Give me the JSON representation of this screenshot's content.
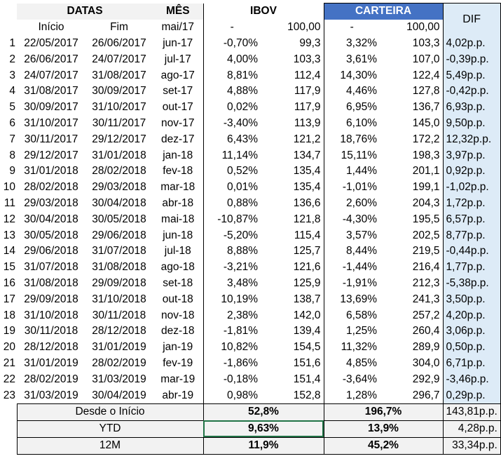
{
  "headers": {
    "datas": "DATAS",
    "mes": "MÊS",
    "ibov": "IBOV",
    "carteira": "CARTEIRA",
    "dif": "DIF",
    "inicio": "Início",
    "fim": "Fim",
    "mes_base": "mai/17",
    "ibov_dash": "-",
    "ibov_base": "100,00",
    "cart_dash": "-",
    "cart_base": "100,00"
  },
  "rows": [
    {
      "n": "1",
      "inicio": "22/05/2017",
      "fim": "26/06/2017",
      "mes": "jun-17",
      "ibov_pct": "-0,70%",
      "ibov_idx": "99,3",
      "cart_pct": "3,32%",
      "cart_idx": "103,3",
      "dif": "4,02p.p."
    },
    {
      "n": "2",
      "inicio": "26/06/2017",
      "fim": "24/07/2017",
      "mes": "jul-17",
      "ibov_pct": "4,00%",
      "ibov_idx": "103,3",
      "cart_pct": "3,61%",
      "cart_idx": "107,0",
      "dif": "-0,39p.p."
    },
    {
      "n": "3",
      "inicio": "24/07/2017",
      "fim": "31/08/2017",
      "mes": "ago-17",
      "ibov_pct": "8,81%",
      "ibov_idx": "112,4",
      "cart_pct": "14,30%",
      "cart_idx": "122,4",
      "dif": "5,49p.p."
    },
    {
      "n": "4",
      "inicio": "31/08/2017",
      "fim": "30/09/2017",
      "mes": "set-17",
      "ibov_pct": "4,88%",
      "ibov_idx": "117,9",
      "cart_pct": "4,46%",
      "cart_idx": "127,8",
      "dif": "-0,42p.p."
    },
    {
      "n": "5",
      "inicio": "30/09/2017",
      "fim": "31/10/2017",
      "mes": "out-17",
      "ibov_pct": "0,02%",
      "ibov_idx": "117,9",
      "cart_pct": "6,95%",
      "cart_idx": "136,7",
      "dif": "6,93p.p."
    },
    {
      "n": "6",
      "inicio": "31/10/2017",
      "fim": "30/11/2017",
      "mes": "nov-17",
      "ibov_pct": "-3,40%",
      "ibov_idx": "113,9",
      "cart_pct": "6,10%",
      "cart_idx": "145,0",
      "dif": "9,50p.p."
    },
    {
      "n": "7",
      "inicio": "30/11/2017",
      "fim": "29/12/2017",
      "mes": "dez-17",
      "ibov_pct": "6,43%",
      "ibov_idx": "121,2",
      "cart_pct": "18,76%",
      "cart_idx": "172,2",
      "dif": "12,32p.p."
    },
    {
      "n": "8",
      "inicio": "29/12/2017",
      "fim": "31/01/2018",
      "mes": "jan-18",
      "ibov_pct": "11,14%",
      "ibov_idx": "134,7",
      "cart_pct": "15,11%",
      "cart_idx": "198,3",
      "dif": "3,97p.p."
    },
    {
      "n": "9",
      "inicio": "31/01/2018",
      "fim": "28/02/2018",
      "mes": "fev-18",
      "ibov_pct": "0,52%",
      "ibov_idx": "135,4",
      "cart_pct": "1,44%",
      "cart_idx": "201,1",
      "dif": "0,92p.p."
    },
    {
      "n": "10",
      "inicio": "28/02/2018",
      "fim": "29/03/2018",
      "mes": "mar-18",
      "ibov_pct": "0,01%",
      "ibov_idx": "135,4",
      "cart_pct": "-1,01%",
      "cart_idx": "199,1",
      "dif": "-1,02p.p."
    },
    {
      "n": "11",
      "inicio": "29/03/2018",
      "fim": "30/04/2018",
      "mes": "abr-18",
      "ibov_pct": "0,88%",
      "ibov_idx": "136,6",
      "cart_pct": "2,60%",
      "cart_idx": "204,3",
      "dif": "1,72p.p."
    },
    {
      "n": "12",
      "inicio": "30/04/2018",
      "fim": "30/05/2018",
      "mes": "mai-18",
      "ibov_pct": "-10,87%",
      "ibov_idx": "121,8",
      "cart_pct": "-4,30%",
      "cart_idx": "195,5",
      "dif": "6,57p.p."
    },
    {
      "n": "13",
      "inicio": "30/05/2018",
      "fim": "29/06/2018",
      "mes": "jun-18",
      "ibov_pct": "-5,20%",
      "ibov_idx": "115,4",
      "cart_pct": "3,57%",
      "cart_idx": "202,5",
      "dif": "8,77p.p."
    },
    {
      "n": "14",
      "inicio": "29/06/2018",
      "fim": "31/07/2018",
      "mes": "jul-18",
      "ibov_pct": "8,88%",
      "ibov_idx": "125,7",
      "cart_pct": "8,44%",
      "cart_idx": "219,5",
      "dif": "-0,44p.p."
    },
    {
      "n": "15",
      "inicio": "31/07/2018",
      "fim": "31/08/2018",
      "mes": "ago-18",
      "ibov_pct": "-3,21%",
      "ibov_idx": "121,6",
      "cart_pct": "-1,44%",
      "cart_idx": "216,4",
      "dif": "1,77p.p."
    },
    {
      "n": "16",
      "inicio": "31/08/2018",
      "fim": "29/09/2018",
      "mes": "set-18",
      "ibov_pct": "3,48%",
      "ibov_idx": "125,9",
      "cart_pct": "-1,91%",
      "cart_idx": "212,3",
      "dif": "-5,38p.p."
    },
    {
      "n": "17",
      "inicio": "29/09/2018",
      "fim": "31/10/2018",
      "mes": "out-18",
      "ibov_pct": "10,19%",
      "ibov_idx": "138,7",
      "cart_pct": "13,69%",
      "cart_idx": "241,3",
      "dif": "3,50p.p."
    },
    {
      "n": "18",
      "inicio": "31/10/2018",
      "fim": "30/11/2018",
      "mes": "nov-18",
      "ibov_pct": "2,38%",
      "ibov_idx": "142,0",
      "cart_pct": "6,58%",
      "cart_idx": "257,2",
      "dif": "4,20p.p."
    },
    {
      "n": "19",
      "inicio": "30/11/2018",
      "fim": "28/12/2018",
      "mes": "dez-18",
      "ibov_pct": "-1,81%",
      "ibov_idx": "139,4",
      "cart_pct": "1,25%",
      "cart_idx": "260,4",
      "dif": "3,06p.p."
    },
    {
      "n": "20",
      "inicio": "28/12/2018",
      "fim": "31/01/2019",
      "mes": "jan-19",
      "ibov_pct": "10,82%",
      "ibov_idx": "154,5",
      "cart_pct": "11,32%",
      "cart_idx": "289,9",
      "dif": "0,50p.p."
    },
    {
      "n": "21",
      "inicio": "31/01/2019",
      "fim": "28/02/2019",
      "mes": "fev-19",
      "ibov_pct": "-1,86%",
      "ibov_idx": "151,6",
      "cart_pct": "4,85%",
      "cart_idx": "304,0",
      "dif": "6,71p.p."
    },
    {
      "n": "22",
      "inicio": "28/02/2019",
      "fim": "31/03/2019",
      "mes": "mar-19",
      "ibov_pct": "-0,18%",
      "ibov_idx": "151,4",
      "cart_pct": "-3,64%",
      "cart_idx": "292,9",
      "dif": "-3,46p.p."
    },
    {
      "n": "23",
      "inicio": "31/03/2019",
      "fim": "30/04/2019",
      "mes": "abr-19",
      "ibov_pct": "0,98%",
      "ibov_idx": "152,8",
      "cart_pct": "1,28%",
      "cart_idx": "296,7",
      "dif": "0,29p.p."
    }
  ],
  "summary": [
    {
      "label": "Desde o Início",
      "ibov": "52,8%",
      "carteira": "196,7%",
      "dif": "143,81p.p."
    },
    {
      "label": "YTD",
      "ibov": "9,63%",
      "carteira": "13,9%",
      "dif": "4,28p.p."
    },
    {
      "label": "12M",
      "ibov": "11,9%",
      "carteira": "45,2%",
      "dif": "33,34p.p."
    }
  ],
  "colors": {
    "carteira_header": "#4472c4",
    "dif_fill": "#ddebf7",
    "gray_fill": "#f2f2f2",
    "selection": "#217346"
  }
}
